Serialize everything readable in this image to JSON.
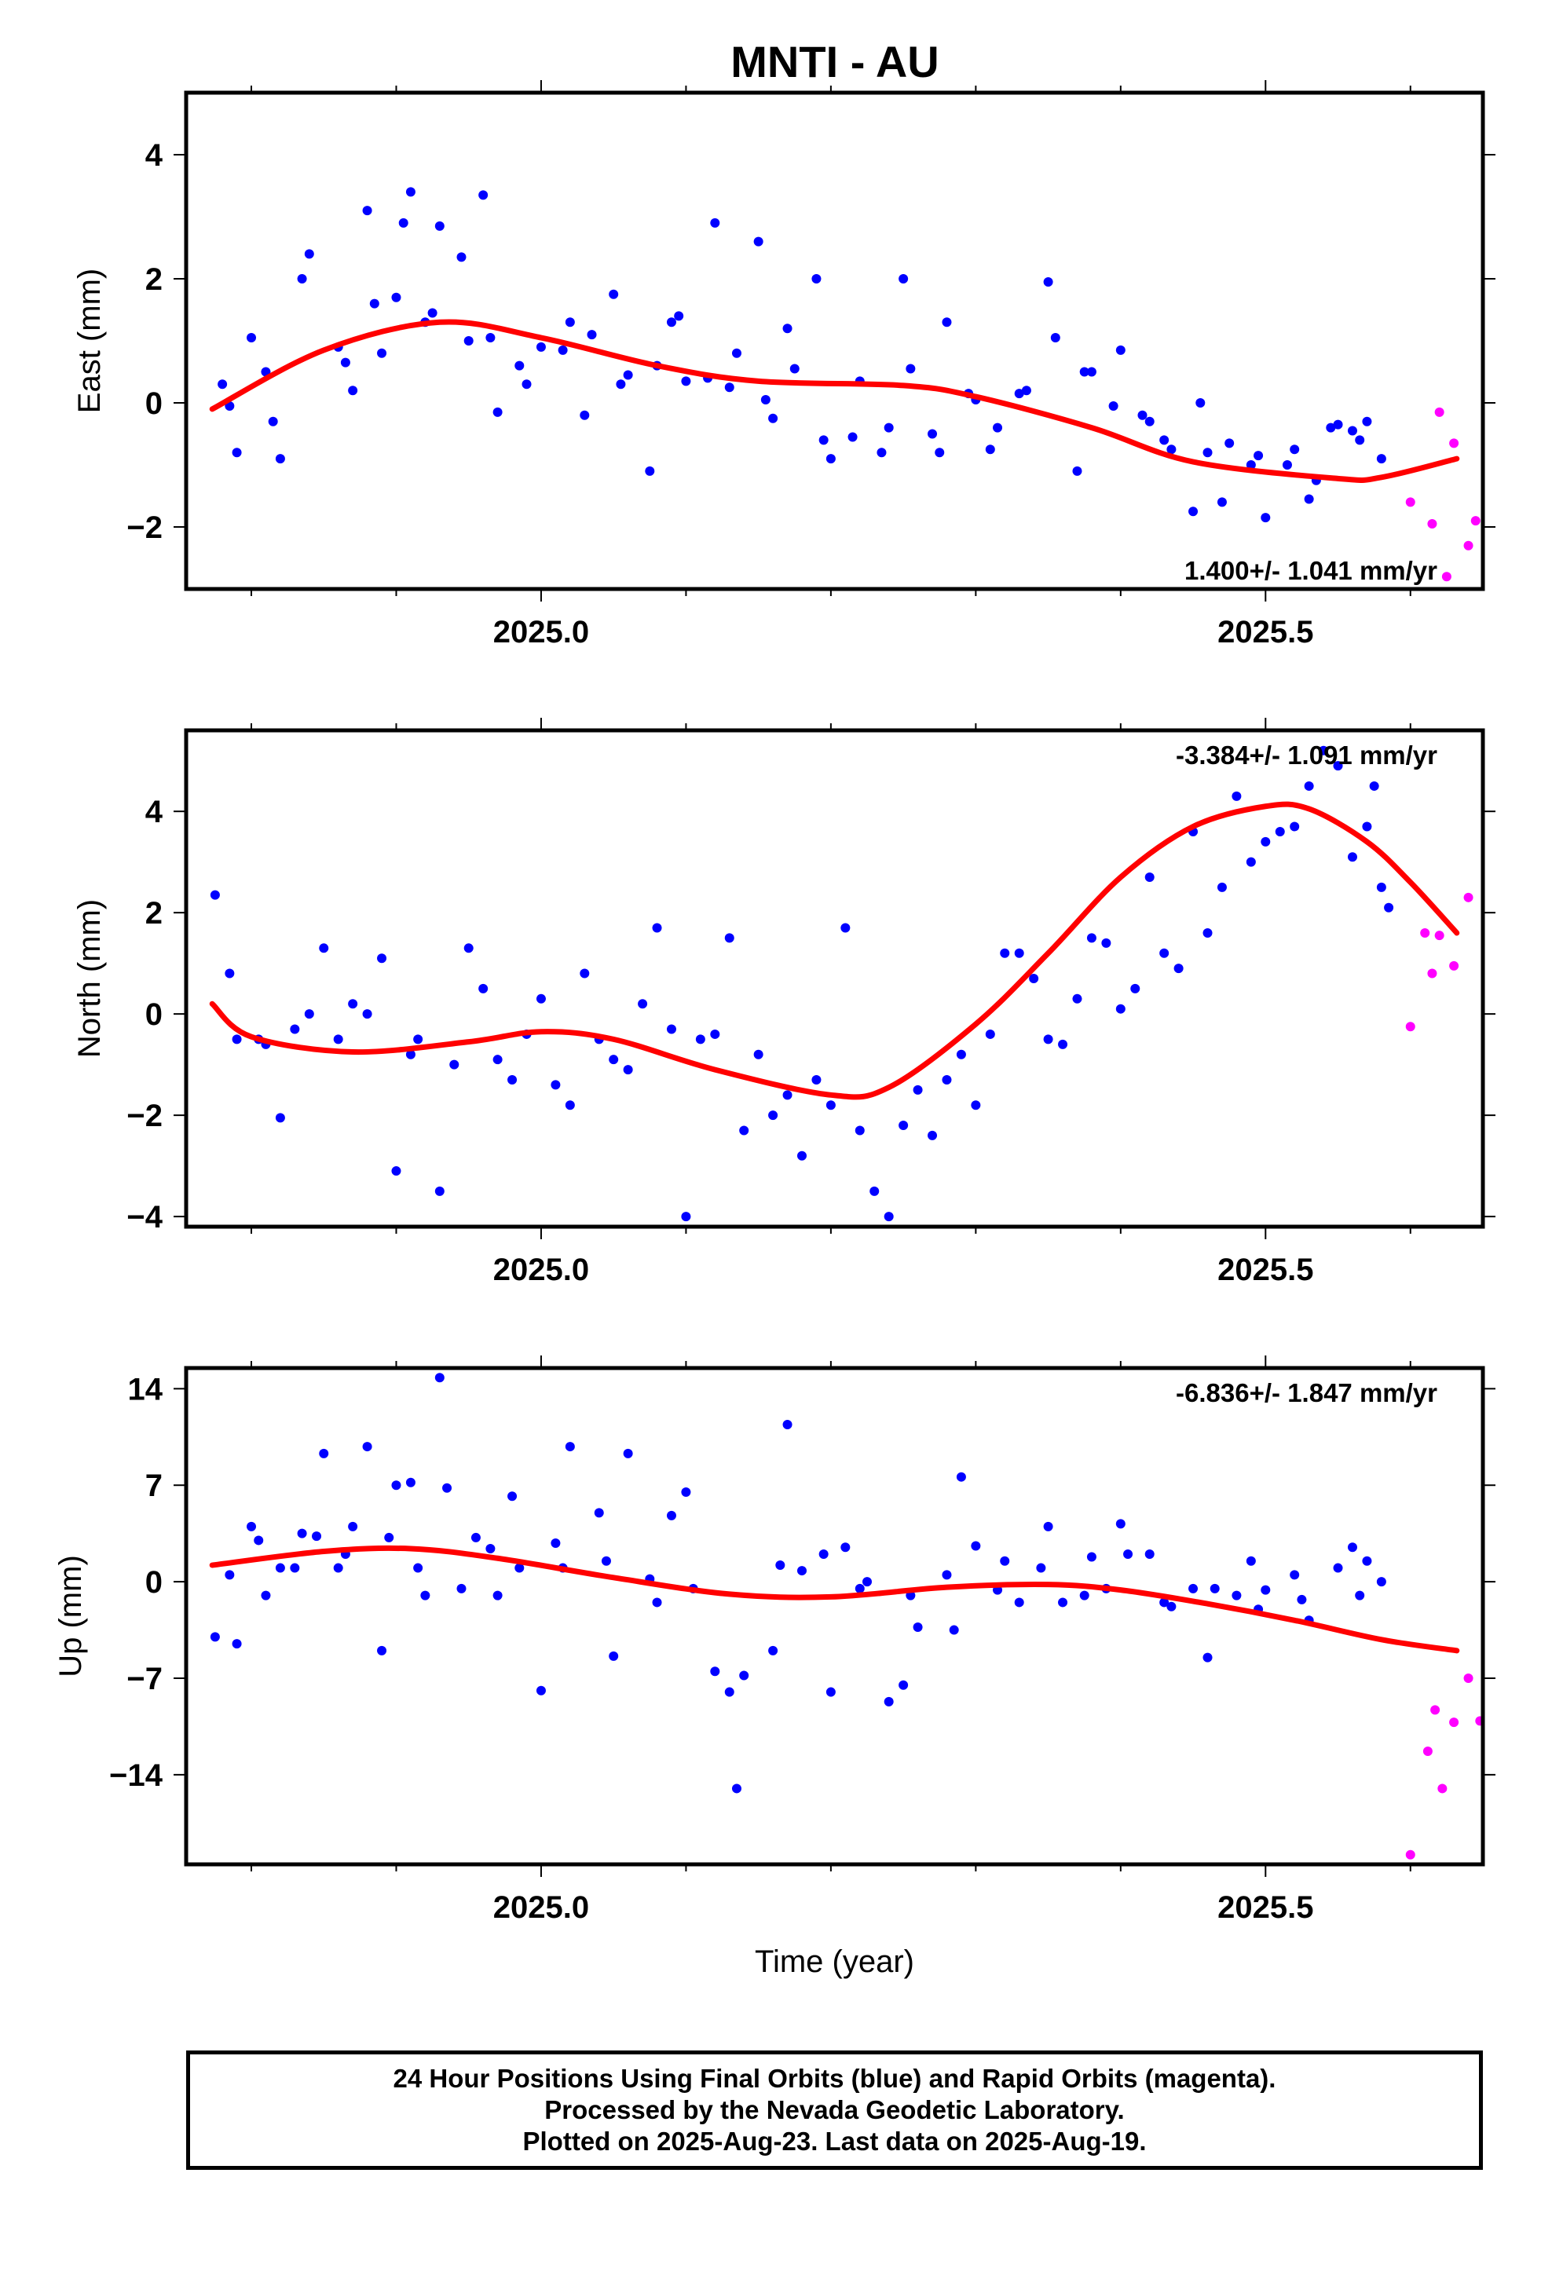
{
  "title": "MNTI - AU",
  "footer": {
    "line1": "24 Hour Positions Using Final Orbits (blue) and Rapid Orbits (magenta).",
    "line2": "Processed by the Nevada Geodetic Laboratory.",
    "line3": "Plotted on 2025-Aug-23. Last data on 2025-Aug-19."
  },
  "colors": {
    "final": "#0000ff",
    "rapid": "#ff00ff",
    "fit": "#ff0000",
    "frame": "#000000"
  },
  "chart_data": [
    {
      "type": "scatter",
      "xlabel": "",
      "ylabel": "East (mm)",
      "xlim": [
        24.755,
        25.65
      ],
      "ylim": [
        -3.0,
        5.0
      ],
      "xticks": [
        {
          "value": 25.0,
          "label": "2025.0"
        },
        {
          "value": 25.5,
          "label": "2025.5"
        }
      ],
      "yticks": [
        {
          "value": 4,
          "label": "4"
        },
        {
          "value": 2,
          "label": "2"
        },
        {
          "value": 0,
          "label": "0"
        },
        {
          "value": -2,
          "label": "−2"
        }
      ],
      "rate_text": "1.400+/- 1.041 mm/yr",
      "rate_position": "bottom-right",
      "fit": {
        "x": [
          24.773,
          24.85,
          24.93,
          25.0,
          25.08,
          25.15,
          25.25,
          25.3,
          25.38,
          25.45,
          25.55,
          25.58,
          25.632
        ],
        "y": [
          -0.1,
          0.85,
          1.3,
          1.05,
          0.6,
          0.35,
          0.28,
          0.1,
          -0.4,
          -0.95,
          -1.22,
          -1.2,
          -0.9
        ]
      },
      "series": [
        {
          "name": "Final Orbits",
          "color": "#0000ff",
          "x": [
            24.78,
            24.79,
            24.8,
            24.81,
            24.82,
            24.84,
            24.86,
            24.87,
            24.88,
            24.89,
            24.9,
            24.91,
            24.92,
            24.93,
            24.95,
            24.96,
            24.97,
            24.99,
            25.0,
            25.02,
            25.03,
            25.05,
            25.06,
            25.08,
            25.09,
            25.1,
            25.12,
            25.13,
            25.15,
            25.16,
            25.17,
            25.19,
            25.2,
            25.22,
            25.24,
            25.25,
            25.27,
            25.28,
            25.3,
            25.31,
            25.33,
            25.35,
            25.37,
            25.38,
            25.4,
            25.42,
            25.43,
            25.45,
            25.46,
            25.47,
            25.49,
            25.5,
            25.52,
            25.53,
            25.55,
            25.56,
            25.57,
            25.58,
            24.785,
            24.815,
            24.835,
            24.865,
            24.885,
            24.905,
            24.925,
            24.945,
            24.965,
            24.985,
            25.015,
            25.035,
            25.055,
            25.075,
            25.095,
            25.115,
            25.135,
            25.155,
            25.175,
            25.195,
            25.215,
            25.235,
            25.255,
            25.275,
            25.295,
            25.315,
            25.335,
            25.355,
            25.375,
            25.395,
            25.415,
            25.435,
            25.455,
            25.475,
            25.495,
            25.515,
            25.535,
            25.545,
            25.565
          ],
          "y": [
            0.3,
            -0.8,
            1.05,
            0.5,
            -0.9,
            2.4,
            0.9,
            0.2,
            3.1,
            0.8,
            1.7,
            3.4,
            1.3,
            2.85,
            1.0,
            3.35,
            -0.15,
            0.3,
            0.9,
            1.3,
            -0.2,
            1.75,
            0.45,
            0.6,
            1.3,
            0.35,
            2.9,
            0.25,
            2.6,
            -0.25,
            1.2,
            2.0,
            -0.9,
            0.35,
            -0.4,
            2.0,
            -0.5,
            1.3,
            0.05,
            -0.75,
            0.15,
            1.95,
            -1.1,
            0.5,
            0.85,
            -0.3,
            -0.6,
            -1.75,
            -0.8,
            -1.6,
            -1.0,
            -1.85,
            -0.75,
            -1.55,
            -0.35,
            -0.45,
            -0.3,
            -0.9,
            -0.05,
            -0.3,
            2.0,
            0.65,
            1.6,
            2.9,
            1.45,
            2.35,
            1.05,
            0.6,
            0.85,
            1.1,
            0.3,
            -1.1,
            1.4,
            0.4,
            0.8,
            0.05,
            0.55,
            -0.6,
            -0.55,
            -0.8,
            0.55,
            -0.8,
            0.15,
            -0.4,
            0.2,
            1.05,
            0.5,
            -0.05,
            -0.2,
            -0.75,
            0.0,
            -0.65,
            -0.85,
            -1.0,
            -1.25,
            -0.4,
            -0.6
          ]
        },
        {
          "name": "Rapid Orbits",
          "color": "#ff00ff",
          "x": [
            25.6,
            25.615,
            25.62,
            25.625,
            25.63,
            25.64,
            25.645
          ],
          "y": [
            -1.6,
            -1.95,
            -0.15,
            -2.8,
            -0.65,
            -2.3,
            -1.9
          ]
        }
      ]
    },
    {
      "type": "scatter",
      "xlabel": "",
      "ylabel": "North (mm)",
      "xlim": [
        24.755,
        25.65
      ],
      "ylim": [
        -4.2,
        5.6
      ],
      "xticks": [
        {
          "value": 25.0,
          "label": "2025.0"
        },
        {
          "value": 25.5,
          "label": "2025.5"
        }
      ],
      "yticks": [
        {
          "value": 4,
          "label": "4"
        },
        {
          "value": 2,
          "label": "2"
        },
        {
          "value": 0,
          "label": "0"
        },
        {
          "value": -2,
          "label": "−2"
        },
        {
          "value": -4,
          "label": "−4"
        }
      ],
      "rate_text": "-3.384+/- 1.091 mm/yr",
      "rate_position": "top-right",
      "fit": {
        "x": [
          24.773,
          24.8,
          24.87,
          24.95,
          25.0,
          25.05,
          25.12,
          25.2,
          25.24,
          25.3,
          25.35,
          25.4,
          25.45,
          25.5,
          25.53,
          25.57,
          25.6,
          25.632
        ],
        "y": [
          0.2,
          -0.45,
          -0.75,
          -0.55,
          -0.35,
          -0.5,
          -1.1,
          -1.6,
          -1.45,
          -0.2,
          1.2,
          2.7,
          3.7,
          4.1,
          4.05,
          3.4,
          2.6,
          1.6
        ]
      },
      "series": [
        {
          "name": "Final Orbits",
          "color": "#0000ff",
          "x": [
            24.775,
            24.79,
            24.81,
            24.82,
            24.84,
            24.86,
            24.87,
            24.89,
            24.9,
            24.91,
            24.93,
            24.95,
            24.96,
            24.98,
            25.0,
            25.02,
            25.03,
            25.05,
            25.07,
            25.08,
            25.1,
            25.12,
            25.13,
            25.15,
            25.16,
            25.18,
            25.2,
            25.21,
            25.23,
            25.24,
            25.26,
            25.27,
            25.29,
            25.3,
            25.32,
            25.33,
            25.35,
            25.37,
            25.38,
            25.4,
            25.41,
            25.43,
            25.44,
            25.46,
            25.47,
            25.49,
            25.5,
            25.51,
            25.52,
            25.53,
            25.55,
            25.56,
            25.57,
            25.58,
            25.585,
            24.785,
            24.805,
            24.83,
            24.85,
            24.88,
            24.915,
            24.94,
            24.97,
            24.99,
            25.01,
            25.04,
            25.06,
            25.09,
            25.11,
            25.14,
            25.17,
            25.19,
            25.22,
            25.25,
            25.28,
            25.31,
            25.34,
            25.36,
            25.39,
            25.42,
            25.45,
            25.48,
            25.54,
            25.575
          ],
          "y": [
            2.35,
            -0.5,
            -0.6,
            -2.05,
            0.0,
            -0.5,
            0.2,
            1.1,
            -3.1,
            -0.8,
            -3.5,
            1.3,
            0.5,
            -1.3,
            0.3,
            -1.8,
            0.8,
            -0.9,
            0.2,
            1.7,
            -4.0,
            -0.4,
            1.5,
            -0.8,
            -2.0,
            -2.8,
            -1.8,
            1.7,
            -3.5,
            -4.0,
            -1.5,
            -2.4,
            -0.8,
            -1.8,
            1.2,
            1.2,
            -0.5,
            0.3,
            1.5,
            0.1,
            0.5,
            1.2,
            0.9,
            1.6,
            2.5,
            3.0,
            3.4,
            3.6,
            3.7,
            4.5,
            4.9,
            3.1,
            3.7,
            2.5,
            2.1,
            0.8,
            -0.5,
            -0.3,
            1.3,
            0.0,
            -0.5,
            -1.0,
            -0.9,
            -0.4,
            -1.4,
            -0.5,
            -1.1,
            -0.3,
            -0.5,
            -2.3,
            -1.6,
            -1.3,
            -2.3,
            -2.2,
            -1.3,
            -0.4,
            0.7,
            -0.6,
            1.4,
            2.7,
            3.6,
            4.3,
            5.2,
            4.5
          ]
        },
        {
          "name": "Rapid Orbits",
          "color": "#ff00ff",
          "x": [
            25.6,
            25.61,
            25.615,
            25.62,
            25.63,
            25.64
          ],
          "y": [
            -0.25,
            1.6,
            0.8,
            1.55,
            0.95,
            2.3
          ]
        }
      ]
    },
    {
      "type": "scatter",
      "xlabel": "Time (year)",
      "ylabel": "Up (mm)",
      "xlim": [
        24.755,
        25.65
      ],
      "ylim": [
        -20.5,
        15.5
      ],
      "xticks": [
        {
          "value": 25.0,
          "label": "2025.0"
        },
        {
          "value": 25.5,
          "label": "2025.5"
        }
      ],
      "yticks": [
        {
          "value": 14,
          "label": "14"
        },
        {
          "value": 7,
          "label": "7"
        },
        {
          "value": 0,
          "label": "0"
        },
        {
          "value": -7,
          "label": "−7"
        },
        {
          "value": -14,
          "label": "−14"
        }
      ],
      "rate_text": "-6.836+/- 1.847 mm/yr",
      "rate_position": "top-right",
      "fit": {
        "x": [
          24.773,
          24.85,
          24.91,
          24.97,
          25.05,
          25.13,
          25.2,
          25.28,
          25.35,
          25.4,
          25.46,
          25.52,
          25.58,
          25.632
        ],
        "y": [
          1.2,
          2.2,
          2.4,
          1.7,
          0.3,
          -0.9,
          -1.1,
          -0.4,
          -0.2,
          -0.6,
          -1.6,
          -2.8,
          -4.2,
          -5.0
        ]
      },
      "series": [
        {
          "name": "Final Orbits",
          "color": "#0000ff",
          "x": [
            24.775,
            24.79,
            24.8,
            24.81,
            24.82,
            24.835,
            24.85,
            24.86,
            24.87,
            24.88,
            24.89,
            24.9,
            24.91,
            24.92,
            24.93,
            24.945,
            24.955,
            24.97,
            24.98,
            25.0,
            25.01,
            25.02,
            25.04,
            25.05,
            25.06,
            25.08,
            25.09,
            25.1,
            25.12,
            25.13,
            25.14,
            25.16,
            25.17,
            25.18,
            25.2,
            25.21,
            25.22,
            25.24,
            25.25,
            25.26,
            25.28,
            25.29,
            25.3,
            25.32,
            25.33,
            25.35,
            25.36,
            25.38,
            25.39,
            25.4,
            25.42,
            25.43,
            25.45,
            25.46,
            25.48,
            25.49,
            25.5,
            25.52,
            25.53,
            25.55,
            25.56,
            25.57,
            25.58,
            24.785,
            24.805,
            24.83,
            24.845,
            24.865,
            24.895,
            24.915,
            24.935,
            24.965,
            24.985,
            25.015,
            25.045,
            25.075,
            25.105,
            25.135,
            25.165,
            25.195,
            25.225,
            25.255,
            25.285,
            25.315,
            25.345,
            25.375,
            25.405,
            25.435,
            25.465,
            25.495,
            25.525,
            25.565
          ],
          "y": [
            -4.0,
            -4.5,
            4.0,
            -1.0,
            1.0,
            3.5,
            9.3,
            1.0,
            4.0,
            9.8,
            -5.0,
            7.0,
            7.2,
            -1.0,
            14.8,
            -0.5,
            3.2,
            -1.0,
            6.2,
            -7.9,
            2.8,
            9.8,
            5.0,
            -5.4,
            9.3,
            -1.5,
            4.8,
            6.5,
            -6.5,
            -8.0,
            -6.8,
            -5.0,
            11.4,
            0.8,
            -8.0,
            2.5,
            -0.5,
            -8.7,
            -7.5,
            -3.3,
            0.5,
            7.6,
            2.6,
            1.5,
            -1.5,
            4.0,
            -1.5,
            1.8,
            -0.5,
            4.2,
            2.0,
            -1.5,
            -0.5,
            -5.5,
            -1.0,
            1.5,
            -0.6,
            0.5,
            -2.8,
            1.0,
            2.5,
            1.5,
            0.0,
            0.5,
            3.0,
            1.0,
            3.3,
            2.0,
            3.2,
            1.0,
            6.8,
            2.4,
            1.0,
            1.0,
            1.5,
            0.2,
            -0.5,
            -15.0,
            1.2,
            2.0,
            0.0,
            -1.0,
            -3.5,
            -0.6,
            1.0,
            -1.0,
            2.0,
            -1.8,
            -0.5,
            -2.0,
            -1.3,
            -1.0
          ]
        },
        {
          "name": "Rapid Orbits",
          "color": "#ff00ff",
          "x": [
            25.6,
            25.612,
            25.617,
            25.622,
            25.63,
            25.64,
            25.648
          ],
          "y": [
            -19.8,
            -12.3,
            -9.3,
            -15.0,
            -10.2,
            -7.0,
            -10.1
          ]
        }
      ]
    }
  ]
}
